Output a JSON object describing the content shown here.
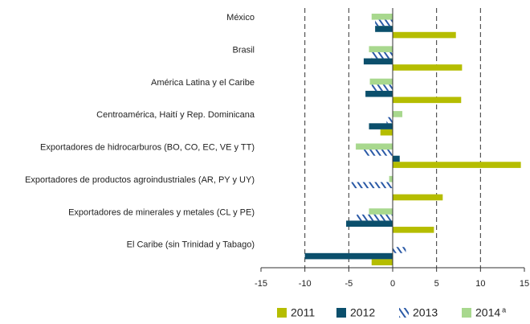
{
  "chart_data": {
    "type": "bar",
    "orientation": "horizontal",
    "categories": [
      "México",
      "Brasil",
      "América Latina y el Caribe",
      "Centroamérica, Haití y Rep. Dominicana",
      "Exportadores de hidrocarburos (BO, CO, EC, VE y TT)",
      "Exportadores de productos agroindustriales (AR, PY y UY)",
      "Exportadores de minerales y metales (CL y PE)",
      "El Caribe (sin Trinidad y Tabago)"
    ],
    "series": [
      {
        "name": "2011",
        "color": "#b5bd00",
        "values": [
          7.2,
          7.9,
          7.8,
          -1.4,
          14.6,
          5.7,
          4.7,
          -2.4
        ]
      },
      {
        "name": "2012",
        "color": "#0b4f6c",
        "values": [
          -2.0,
          -3.3,
          -3.1,
          -2.7,
          0.8,
          0,
          -5.3,
          -10.0
        ]
      },
      {
        "name": "2013",
        "color": "#2b5aa6",
        "hatch": true,
        "values": [
          -2.0,
          -2.4,
          -2.4,
          -0.7,
          -3.3,
          -4.7,
          -4.1,
          1.5
        ]
      },
      {
        "name": "2014",
        "superscript": "a",
        "color": "#a8d88e",
        "values": [
          -2.4,
          -2.7,
          -2.6,
          1.1,
          -4.2,
          -0.4,
          -2.7,
          null
        ]
      }
    ],
    "xlim": [
      -15,
      15
    ],
    "xticks": [
      -15,
      -10,
      -5,
      0,
      5,
      10,
      15
    ],
    "grid": true,
    "legend": "bottom"
  }
}
